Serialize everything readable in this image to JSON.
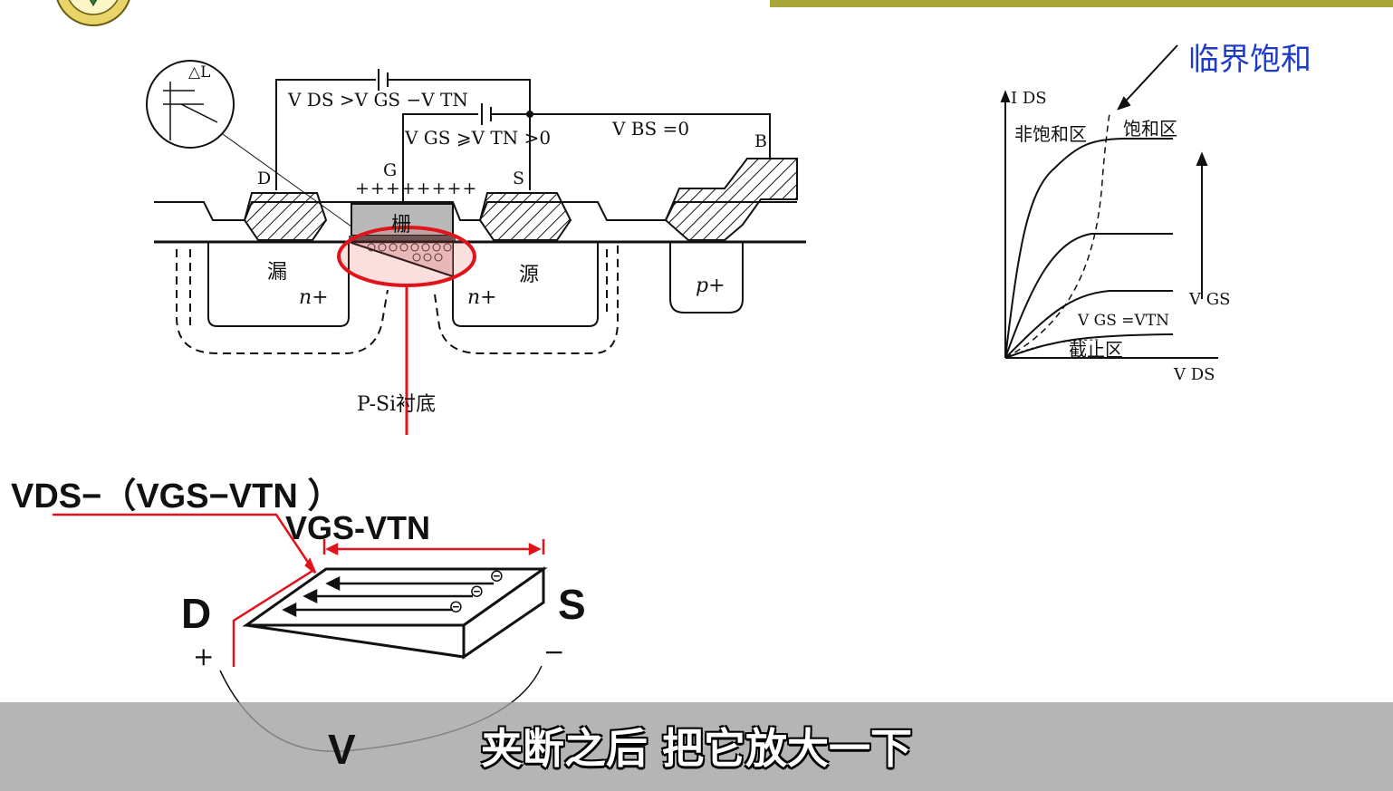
{
  "header": {
    "bar_color": "#a8a83a",
    "logo_icon": "school-seal-icon"
  },
  "mos_diagram": {
    "v_ds_cond": "V DS >V GS −V TN",
    "v_gs_cond": "V GS ⩾V TN >0",
    "v_bs": "V BS =0",
    "terminal_d": "D",
    "terminal_g": "G",
    "terminal_s": "S",
    "terminal_b": "B",
    "gate_label": "栅",
    "drain_label": "漏",
    "source_label": "源",
    "drain_doping": "n+",
    "source_doping": "n+",
    "body_doping": "p+",
    "substrate": "P-Si衬底",
    "plus_charges": "++++++++",
    "inset_label": "△L",
    "highlight_color": "#e0141b"
  },
  "iv_curve": {
    "critical_label": "临界饱和",
    "y_axis": "I DS",
    "x_axis": "V DS",
    "nonsat_region": "非饱和区",
    "sat_region": "饱和区",
    "vgs_arrow_label": "V GS",
    "threshold_label": "V GS =VTN",
    "cutoff_region": "截止区",
    "label_color": "#1e3bc8"
  },
  "zoom_diagram": {
    "top_formula": "VDS−（VGS−VTN ）",
    "mid_formula": "VGS-VTN",
    "terminal_d": "D",
    "terminal_s": "S",
    "plus_sign": "+",
    "minus_sign": "−",
    "voltage_label": "V",
    "electron_symbol": "⊝"
  },
  "subtitle": {
    "text": "夹断之后  把它放大一下"
  }
}
